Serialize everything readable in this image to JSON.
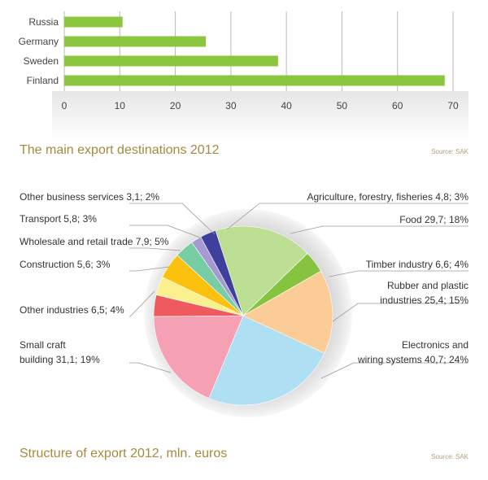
{
  "chart_data": [
    {
      "type": "bar",
      "orientation": "horizontal",
      "title": "The main export destinations 2012",
      "source": "Source: SAK",
      "categories": [
        "Russia",
        "Germany",
        "Sweden",
        "Finland"
      ],
      "values": [
        10.5,
        25.5,
        38.5,
        68.5
      ],
      "xlim": [
        0,
        70
      ],
      "ticks": [
        "0",
        "10",
        "20",
        "30",
        "40",
        "50",
        "60",
        "70"
      ],
      "grid": true,
      "color": "#8cc63e"
    },
    {
      "type": "pie",
      "title": "Structure of export 2012, mln. euros",
      "source": "Source: SAK",
      "slices": [
        {
          "label": "Food 29,7; 18%",
          "value": 29.7,
          "color": "#bddf94"
        },
        {
          "label": "Timber industry 6,6; 4%",
          "value": 6.6,
          "color": "#86c440"
        },
        {
          "label": "Rubber and plastic industries 25,4; 15%",
          "label_lines": [
            "Rubber and plastic",
            "industries 25,4; 15%"
          ],
          "value": 25.4,
          "color": "#fbcc96"
        },
        {
          "label": "Electronics and wiring systems 40,7; 24%",
          "label_lines": [
            "Electronics and",
            "wiring systems 40,7; 24%"
          ],
          "value": 40.7,
          "color": "#aedff2"
        },
        {
          "label": "Small craft building 31,1; 19%",
          "label_lines": [
            "Small craft",
            "building 31,1; 19%"
          ],
          "value": 31.1,
          "color": "#f5a1b3"
        },
        {
          "label": "Other industries 6,5; 4%",
          "value": 6.5,
          "color": "#ee5a5e"
        },
        {
          "label": "Construction 5,6; 3%",
          "value": 5.6,
          "color": "#fbf08d"
        },
        {
          "label": "Wholesale and retail trade 7,9; 5%",
          "value": 7.9,
          "color": "#fcc10f"
        },
        {
          "label": "Transport 5,8; 3%",
          "value": 5.8,
          "color": "#78cda5"
        },
        {
          "label": "Other business services 3,1; 2%",
          "value": 3.1,
          "color": "#a59bd0"
        },
        {
          "label": "Agriculture, forestry, fisheries 4,8; 3%",
          "value": 4.8,
          "color": "#3f3f9e"
        }
      ]
    }
  ]
}
